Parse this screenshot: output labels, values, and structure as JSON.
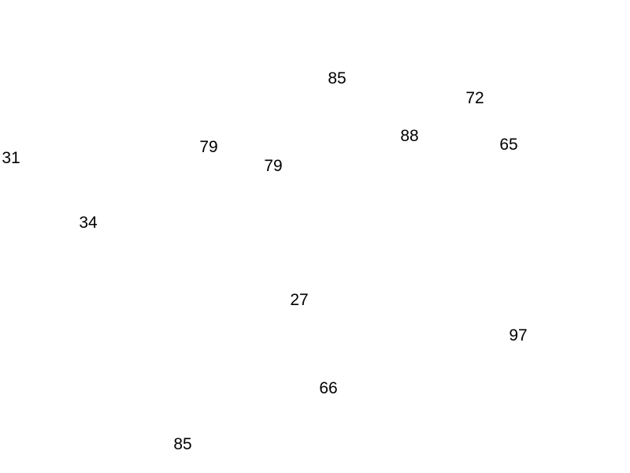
{
  "numbers": [
    {
      "value": "85"
    },
    {
      "value": "72"
    },
    {
      "value": "88"
    },
    {
      "value": "65"
    },
    {
      "value": "79"
    },
    {
      "value": "79"
    },
    {
      "value": "31"
    },
    {
      "value": "34"
    },
    {
      "value": "27"
    },
    {
      "value": "97"
    },
    {
      "value": "66"
    },
    {
      "value": "85"
    }
  ]
}
